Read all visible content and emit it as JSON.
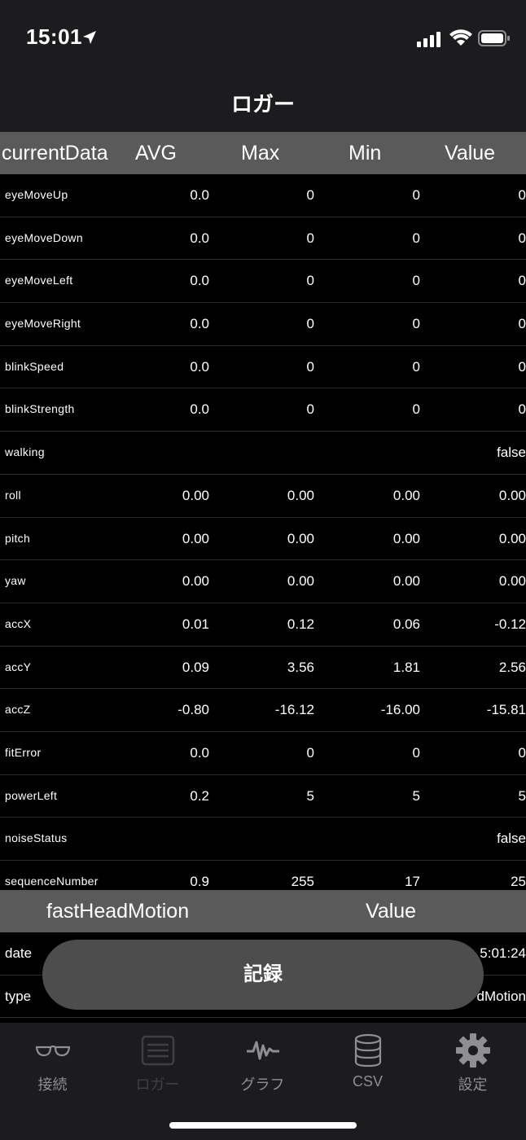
{
  "status": {
    "time": "15:01"
  },
  "nav": {
    "title": "ロガー"
  },
  "table1": {
    "headers": [
      "currentData",
      "AVG",
      "Max",
      "Min",
      "Value"
    ],
    "rows": [
      {
        "label": "eyeMoveUp",
        "avg": "0.0",
        "max": "0",
        "min": "0",
        "value": "0"
      },
      {
        "label": "eyeMoveDown",
        "avg": "0.0",
        "max": "0",
        "min": "0",
        "value": "0"
      },
      {
        "label": "eyeMoveLeft",
        "avg": "0.0",
        "max": "0",
        "min": "0",
        "value": "0"
      },
      {
        "label": "eyeMoveRight",
        "avg": "0.0",
        "max": "0",
        "min": "0",
        "value": "0"
      },
      {
        "label": "blinkSpeed",
        "avg": "0.0",
        "max": "0",
        "min": "0",
        "value": "0"
      },
      {
        "label": "blinkStrength",
        "avg": "0.0",
        "max": "0",
        "min": "0",
        "value": "0"
      },
      {
        "label": "walking",
        "avg": "",
        "max": "",
        "min": "",
        "value": "false"
      },
      {
        "label": "roll",
        "avg": "0.00",
        "max": "0.00",
        "min": "0.00",
        "value": "0.00"
      },
      {
        "label": "pitch",
        "avg": "0.00",
        "max": "0.00",
        "min": "0.00",
        "value": "0.00"
      },
      {
        "label": "yaw",
        "avg": "0.00",
        "max": "0.00",
        "min": "0.00",
        "value": "0.00"
      },
      {
        "label": "accX",
        "avg": "0.01",
        "max": "0.12",
        "min": "0.06",
        "value": "-0.12"
      },
      {
        "label": "accY",
        "avg": "0.09",
        "max": "3.56",
        "min": "1.81",
        "value": "2.56"
      },
      {
        "label": "accZ",
        "avg": "-0.80",
        "max": "-16.12",
        "min": "-16.00",
        "value": "-15.81"
      },
      {
        "label": "fitError",
        "avg": "0.0",
        "max": "0",
        "min": "0",
        "value": "0"
      },
      {
        "label": "powerLeft",
        "avg": "0.2",
        "max": "5",
        "min": "5",
        "value": "5"
      },
      {
        "label": "noiseStatus",
        "avg": "",
        "max": "",
        "min": "",
        "value": "false"
      },
      {
        "label": "sequenceNumber",
        "avg": "0.9",
        "max": "255",
        "min": "17",
        "value": "25"
      }
    ]
  },
  "table2": {
    "headers": [
      "fastHeadMotion",
      "Value"
    ],
    "rows": [
      {
        "label": "date",
        "value": "5:01:24"
      },
      {
        "label": "type",
        "value": "dMotion"
      }
    ]
  },
  "record_button": "記録",
  "tabs": [
    {
      "label": "接続",
      "icon": "glasses-icon"
    },
    {
      "label": "ロガー",
      "icon": "list-icon",
      "selected": true
    },
    {
      "label": "グラフ",
      "icon": "waveform-icon"
    },
    {
      "label": "CSV",
      "icon": "database-icon"
    },
    {
      "label": "設定",
      "icon": "gear-icon"
    }
  ]
}
